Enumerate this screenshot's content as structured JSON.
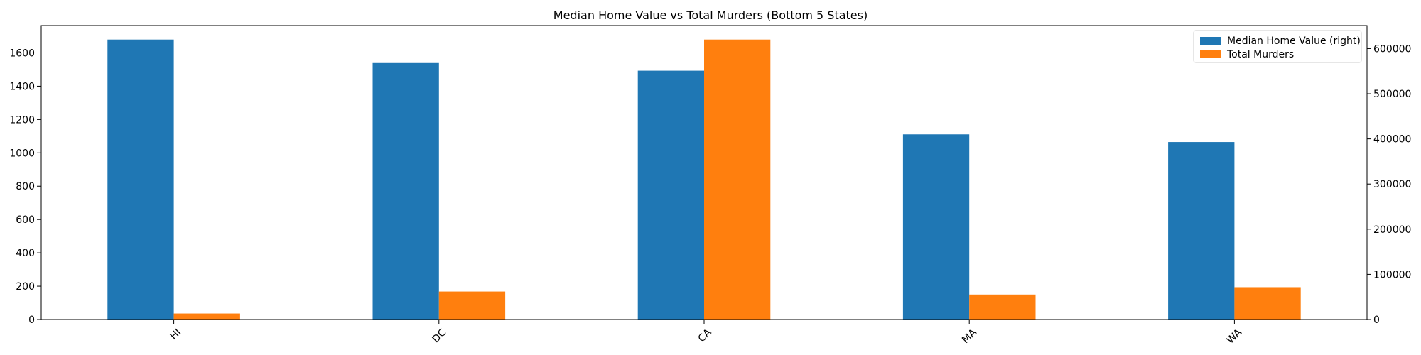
{
  "chart_data": {
    "type": "bar",
    "title": "Median Home Value vs Total Murders (Bottom 5 States)",
    "xlabel": "",
    "ylabel_left": "",
    "ylabel_right": "",
    "categories": [
      "HI",
      "DC",
      "CA",
      "MA",
      "WA"
    ],
    "series": [
      {
        "name": "Median Home Value (right)",
        "axis": "right",
        "color": "#1f77b4",
        "values": [
          620000,
          568000,
          551000,
          410000,
          393000
        ]
      },
      {
        "name": "Total Murders",
        "axis": "left",
        "color": "#ff7f0e",
        "values": [
          36,
          168,
          1680,
          150,
          194
        ]
      }
    ],
    "ylim_left": [
      0,
      1764
    ],
    "yticks_left": [
      0,
      200,
      400,
      600,
      800,
      1000,
      1200,
      1400,
      1600
    ],
    "ylim_right": [
      0,
      651000
    ],
    "yticks_right": [
      0,
      100000,
      200000,
      300000,
      400000,
      500000,
      600000
    ],
    "grid": false,
    "legend_placement": "top-right"
  }
}
